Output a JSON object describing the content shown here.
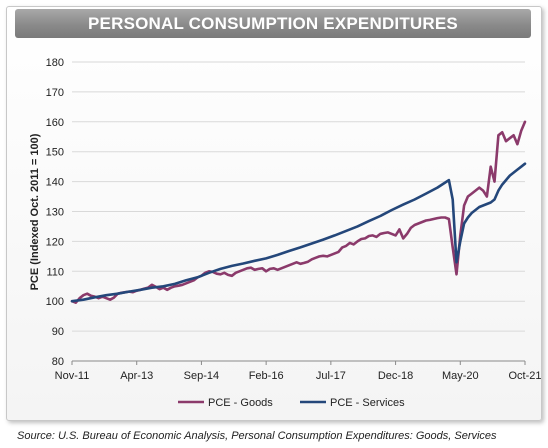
{
  "chart_data": {
    "type": "line",
    "title": "PERSONAL CONSUMPTION EXPENDITURES",
    "ylabel": "PCE (Indexed Oct. 2011 = 100)",
    "xlabel": "",
    "ylim": [
      80,
      180
    ],
    "yticks": [
      80,
      90,
      100,
      110,
      120,
      130,
      140,
      150,
      160,
      170,
      180
    ],
    "xlim": [
      "2011-11",
      "2021-10"
    ],
    "xtick_labels": [
      "Nov-11",
      "Apr-13",
      "Sep-14",
      "Feb-16",
      "Jul-17",
      "Dec-18",
      "May-20",
      "Oct-21"
    ],
    "grid": "horizontal",
    "legend": "bottom-center",
    "series": [
      {
        "name": "PCE - Goods",
        "color": "#8b3a6b",
        "points": [
          [
            "2011-11",
            100
          ],
          [
            "2011-12",
            99.5
          ],
          [
            "2012-01",
            101
          ],
          [
            "2012-02",
            102
          ],
          [
            "2012-03",
            102.5
          ],
          [
            "2012-04",
            101.8
          ],
          [
            "2012-05",
            101.5
          ],
          [
            "2012-06",
            101
          ],
          [
            "2012-07",
            101.5
          ],
          [
            "2012-08",
            101
          ],
          [
            "2012-09",
            100.5
          ],
          [
            "2012-10",
            101.2
          ],
          [
            "2012-11",
            102.5
          ],
          [
            "2012-12",
            102.8
          ],
          [
            "2013-01",
            103
          ],
          [
            "2013-02",
            103.2
          ],
          [
            "2013-03",
            103
          ],
          [
            "2013-04",
            103.5
          ],
          [
            "2013-05",
            103.8
          ],
          [
            "2013-06",
            104.2
          ],
          [
            "2013-07",
            104.5
          ],
          [
            "2013-08",
            105.5
          ],
          [
            "2013-09",
            104.8
          ],
          [
            "2013-10",
            104
          ],
          [
            "2013-11",
            104.5
          ],
          [
            "2013-12",
            103.8
          ],
          [
            "2014-01",
            104.5
          ],
          [
            "2014-02",
            105
          ],
          [
            "2014-03",
            105.2
          ],
          [
            "2014-04",
            105.5
          ],
          [
            "2014-05",
            106
          ],
          [
            "2014-06",
            106.5
          ],
          [
            "2014-07",
            107
          ],
          [
            "2014-08",
            108
          ],
          [
            "2014-09",
            108.5
          ],
          [
            "2014-10",
            109.5
          ],
          [
            "2014-11",
            110
          ],
          [
            "2014-12",
            109.8
          ],
          [
            "2015-01",
            109.2
          ],
          [
            "2015-02",
            109
          ],
          [
            "2015-03",
            109.5
          ],
          [
            "2015-04",
            108.8
          ],
          [
            "2015-05",
            108.5
          ],
          [
            "2015-06",
            109.5
          ],
          [
            "2015-07",
            110
          ],
          [
            "2015-08",
            110.5
          ],
          [
            "2015-09",
            111
          ],
          [
            "2015-10",
            111.2
          ],
          [
            "2015-11",
            110.5
          ],
          [
            "2015-12",
            110.8
          ],
          [
            "2016-01",
            111
          ],
          [
            "2016-02",
            110
          ],
          [
            "2016-03",
            110.8
          ],
          [
            "2016-04",
            111
          ],
          [
            "2016-05",
            110.5
          ],
          [
            "2016-06",
            111
          ],
          [
            "2016-07",
            111.5
          ],
          [
            "2016-08",
            112
          ],
          [
            "2016-09",
            112.5
          ],
          [
            "2016-10",
            113
          ],
          [
            "2016-11",
            112.5
          ],
          [
            "2016-12",
            112.8
          ],
          [
            "2017-01",
            113.2
          ],
          [
            "2017-02",
            114
          ],
          [
            "2017-03",
            114.5
          ],
          [
            "2017-04",
            115
          ],
          [
            "2017-05",
            115.2
          ],
          [
            "2017-06",
            115
          ],
          [
            "2017-07",
            115.5
          ],
          [
            "2017-08",
            116
          ],
          [
            "2017-09",
            116.5
          ],
          [
            "2017-10",
            118
          ],
          [
            "2017-11",
            118.5
          ],
          [
            "2017-12",
            119.5
          ],
          [
            "2018-01",
            119
          ],
          [
            "2018-02",
            120
          ],
          [
            "2018-03",
            120.8
          ],
          [
            "2018-04",
            121
          ],
          [
            "2018-05",
            121.8
          ],
          [
            "2018-06",
            122
          ],
          [
            "2018-07",
            121.5
          ],
          [
            "2018-08",
            122.5
          ],
          [
            "2018-09",
            122.8
          ],
          [
            "2018-10",
            123
          ],
          [
            "2018-11",
            122.5
          ],
          [
            "2018-12",
            122
          ],
          [
            "2019-01",
            124
          ],
          [
            "2019-02",
            121
          ],
          [
            "2019-03",
            122.5
          ],
          [
            "2019-04",
            124.5
          ],
          [
            "2019-05",
            125.5
          ],
          [
            "2019-06",
            126
          ],
          [
            "2019-07",
            126.5
          ],
          [
            "2019-08",
            127
          ],
          [
            "2019-09",
            127.2
          ],
          [
            "2019-10",
            127.5
          ],
          [
            "2019-11",
            127.8
          ],
          [
            "2019-12",
            128
          ],
          [
            "2020-01",
            128
          ],
          [
            "2020-02",
            127.5
          ],
          [
            "2020-03",
            118
          ],
          [
            "2020-04",
            109
          ],
          [
            "2020-05",
            122
          ],
          [
            "2020-06",
            132
          ],
          [
            "2020-07",
            135
          ],
          [
            "2020-08",
            136
          ],
          [
            "2020-09",
            137
          ],
          [
            "2020-10",
            138
          ],
          [
            "2020-11",
            137
          ],
          [
            "2020-12",
            135
          ],
          [
            "2021-01",
            145
          ],
          [
            "2021-02",
            140
          ],
          [
            "2021-03",
            155.5
          ],
          [
            "2021-04",
            156.5
          ],
          [
            "2021-05",
            153.5
          ],
          [
            "2021-06",
            154.5
          ],
          [
            "2021-07",
            155.5
          ],
          [
            "2021-08",
            152.5
          ],
          [
            "2021-09",
            157
          ],
          [
            "2021-10",
            160
          ]
        ]
      },
      {
        "name": "PCE - Services",
        "color": "#24477a",
        "points": [
          [
            "2011-11",
            100
          ],
          [
            "2012-02",
            100.5
          ],
          [
            "2012-05",
            101.3
          ],
          [
            "2012-08",
            102
          ],
          [
            "2012-11",
            102.5
          ],
          [
            "2013-02",
            103.2
          ],
          [
            "2013-05",
            103.8
          ],
          [
            "2013-08",
            104.5
          ],
          [
            "2013-11",
            105
          ],
          [
            "2014-02",
            105.8
          ],
          [
            "2014-05",
            107
          ],
          [
            "2014-08",
            108
          ],
          [
            "2014-11",
            109.5
          ],
          [
            "2015-02",
            110.8
          ],
          [
            "2015-05",
            111.8
          ],
          [
            "2015-08",
            112.6
          ],
          [
            "2015-11",
            113.5
          ],
          [
            "2016-02",
            114.3
          ],
          [
            "2016-05",
            115.5
          ],
          [
            "2016-08",
            116.8
          ],
          [
            "2016-11",
            118
          ],
          [
            "2017-02",
            119.3
          ],
          [
            "2017-05",
            120.6
          ],
          [
            "2017-08",
            122
          ],
          [
            "2017-11",
            123.5
          ],
          [
            "2018-02",
            125
          ],
          [
            "2018-05",
            126.8
          ],
          [
            "2018-08",
            128.5
          ],
          [
            "2018-11",
            130.5
          ],
          [
            "2019-02",
            132.3
          ],
          [
            "2019-05",
            134
          ],
          [
            "2019-08",
            136
          ],
          [
            "2019-11",
            138
          ],
          [
            "2020-02",
            140.5
          ],
          [
            "2020-03",
            134
          ],
          [
            "2020-04",
            113
          ],
          [
            "2020-05",
            120
          ],
          [
            "2020-06",
            126
          ],
          [
            "2020-07",
            128
          ],
          [
            "2020-08",
            129.5
          ],
          [
            "2020-09",
            130.5
          ],
          [
            "2020-10",
            131.5
          ],
          [
            "2020-11",
            132
          ],
          [
            "2020-12",
            132.5
          ],
          [
            "2021-01",
            133
          ],
          [
            "2021-02",
            134
          ],
          [
            "2021-03",
            137
          ],
          [
            "2021-04",
            139
          ],
          [
            "2021-05",
            140.5
          ],
          [
            "2021-06",
            142
          ],
          [
            "2021-07",
            143
          ],
          [
            "2021-08",
            144
          ],
          [
            "2021-09",
            145
          ],
          [
            "2021-10",
            146
          ]
        ]
      }
    ]
  },
  "source_note": "Source: U.S. Bureau of Economic Analysis, Personal Consumption Expenditures: Goods, Services"
}
